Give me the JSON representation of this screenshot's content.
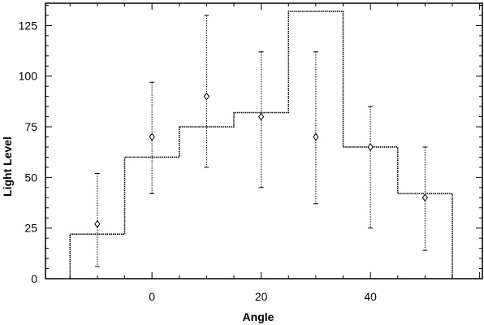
{
  "chart_data": {
    "type": "scatter",
    "title": "",
    "xlabel": "Angle",
    "ylabel": "Light  Level",
    "xlim": [
      -19.5,
      60.5
    ],
    "ylim": [
      0,
      136
    ],
    "x_ticks": [
      0,
      20,
      40
    ],
    "y_ticks": [
      0,
      25,
      50,
      75,
      100,
      125
    ],
    "x_tick_labels": [
      "0",
      "20",
      "40"
    ],
    "y_tick_labels": [
      "0",
      "25",
      "50",
      "75",
      "100",
      "125"
    ],
    "grid": false,
    "legend": "none",
    "series": [
      {
        "type": "step",
        "edges": [
          -15,
          -5,
          5,
          15,
          25,
          35,
          45,
          55
        ],
        "values": [
          22,
          60,
          75,
          82,
          132,
          65,
          42
        ]
      },
      {
        "type": "errorbar",
        "x": [
          -10,
          0,
          10,
          20,
          30,
          40,
          50
        ],
        "y": [
          27,
          70,
          90,
          80,
          70,
          65,
          40
        ],
        "y_low": [
          6,
          42,
          55,
          45,
          37,
          25,
          14
        ],
        "y_high": [
          52,
          97,
          130,
          112,
          112,
          85,
          65
        ]
      }
    ]
  }
}
